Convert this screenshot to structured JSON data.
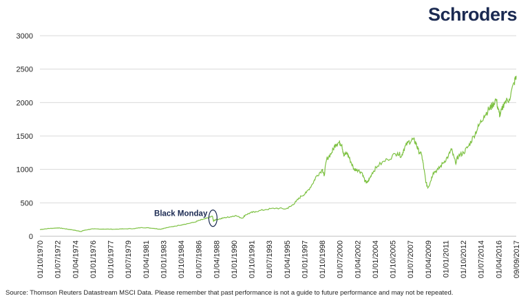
{
  "brand": {
    "name": "Schroders"
  },
  "source_note": "Source: Thomson Reuters Datastream MSCI Data. Please remember that past performance is not a guide to future performance and may not be repeated.",
  "chart_data": {
    "type": "line",
    "title": "",
    "xlabel": "",
    "ylabel": "",
    "ylim": [
      0,
      3000
    ],
    "yticks": [
      0,
      500,
      1000,
      1500,
      2000,
      2500,
      3000
    ],
    "grid": "horizontal",
    "line_color": "#7dc142",
    "xticks": [
      "01/10/1970",
      "01/07/1972",
      "01/04/1974",
      "01/01/1976",
      "01/10/1977",
      "01/07/1979",
      "01/04/1981",
      "01/01/1983",
      "01/10/1984",
      "01/07/1986",
      "01/04/1988",
      "01/01/1990",
      "01/10/1991",
      "01/07/1993",
      "01/04/1995",
      "01/01/1997",
      "01/10/1998",
      "01/07/2000",
      "01/04/2002",
      "01/01/2004",
      "01/10/2005",
      "01/07/2007",
      "01/04/2009",
      "01/01/2011",
      "01/10/2012",
      "01/07/2014",
      "01/04/2016",
      "09/09/2017"
    ],
    "series": [
      {
        "x": [
          1970.75,
          1971.5,
          1972.0,
          1972.5,
          1973.0,
          1973.5,
          1974.0,
          1974.5,
          1974.8,
          1975.0,
          1975.5,
          1976.0,
          1977.0,
          1978.0,
          1979.0,
          1980.0,
          1980.8,
          1981.5,
          1982.0,
          1982.6,
          1983.0,
          1984.0,
          1985.0,
          1986.0,
          1986.5,
          1987.0,
          1987.4,
          1987.75,
          1987.85,
          1988.0,
          1988.5,
          1989.0,
          1989.5,
          1990.0,
          1990.7,
          1991.0,
          1991.5,
          1992.0,
          1993.0,
          1994.0,
          1995.0,
          1995.5,
          1996.0,
          1996.5,
          1997.0,
          1997.6,
          1998.0,
          1998.6,
          1998.75,
          1999.0,
          1999.5,
          1999.9,
          2000.2,
          2000.5,
          2000.7,
          2001.0,
          2001.3,
          2001.7,
          2002.0,
          2002.5,
          2002.8,
          2003.0,
          2003.2,
          2003.5,
          2004.0,
          2005.0,
          2006.0,
          2006.4,
          2006.6,
          2007.0,
          2007.5,
          2007.8,
          2008.0,
          2008.4,
          2008.6,
          2008.8,
          2009.0,
          2009.2,
          2009.5,
          2010.0,
          2010.5,
          2011.0,
          2011.3,
          2011.7,
          2012.0,
          2012.5,
          2013.0,
          2013.5,
          2014.0,
          2014.5,
          2015.0,
          2015.3,
          2015.7,
          2016.0,
          2016.1,
          2016.5,
          2017.0,
          2017.5,
          2017.69
        ],
        "values": [
          100,
          115,
          120,
          125,
          118,
          105,
          95,
          80,
          70,
          85,
          100,
          110,
          108,
          105,
          110,
          115,
          130,
          125,
          118,
          105,
          120,
          150,
          180,
          210,
          240,
          260,
          280,
          300,
          230,
          245,
          260,
          280,
          290,
          310,
          270,
          320,
          350,
          370,
          400,
          420,
          410,
          450,
          520,
          600,
          650,
          780,
          900,
          1000,
          900,
          1150,
          1250,
          1380,
          1400,
          1380,
          1200,
          1250,
          1150,
          1000,
          1000,
          950,
          820,
          800,
          850,
          950,
          1050,
          1150,
          1250,
          1200,
          1300,
          1400,
          1450,
          1400,
          1300,
          1200,
          1000,
          800,
          730,
          800,
          950,
          1000,
          1100,
          1200,
          1300,
          1100,
          1200,
          1250,
          1350,
          1500,
          1650,
          1800,
          1900,
          1950,
          2050,
          1850,
          1800,
          2000,
          2050,
          2300,
          2400
        ]
      }
    ],
    "annotations": [
      {
        "label": "Black Monday",
        "x": 1987.8,
        "y": 270
      }
    ]
  }
}
